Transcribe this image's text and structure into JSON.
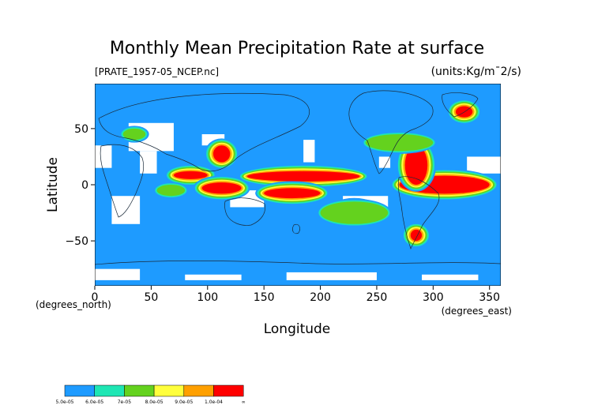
{
  "title": "Monthly Mean Precipitation Rate at surface",
  "source_file": "[PRATE_1957-05_NCEP.nc]",
  "units": "(units:Kg/m¯2/s)",
  "xlabel": "Longitude",
  "ylabel": "Latitude",
  "x_unit": "(degrees_east)",
  "y_unit": "(degrees_north)",
  "x_ticks": [
    "0",
    "50",
    "100",
    "150",
    "200",
    "250",
    "300",
    "350"
  ],
  "y_ticks": [
    "50",
    "0",
    "−50"
  ],
  "colorbar": {
    "labels": [
      "5.0e-05",
      "6.0e-05",
      "7e-05",
      "8.0e-05",
      "9.0e-05",
      "1.0e-04",
      "∞"
    ],
    "colors": [
      "#1e9bff",
      "#1ee6b4",
      "#64d21e",
      "#ffff3c",
      "#ffa000",
      "#ff0000"
    ]
  },
  "colors": {
    "ocean_background": "#1e9bff",
    "missing": "#ffffff",
    "coast": "#1a2a3a"
  },
  "chart_data": {
    "type": "heatmap",
    "title": "Monthly Mean Precipitation Rate at surface",
    "xlabel": "Longitude",
    "ylabel": "Latitude",
    "xlim": [
      0,
      360
    ],
    "ylim": [
      -90,
      90
    ],
    "bins": [
      5e-05,
      6e-05,
      7e-05,
      8e-05,
      9e-05,
      0.0001
    ],
    "regions": [
      {
        "lon": [
          135,
          235
        ],
        "lat": [
          3,
          12
        ],
        "level": 6
      },
      {
        "lon": [
          150,
          200
        ],
        "lat": [
          -12,
          -3
        ],
        "level": 6
      },
      {
        "lon": [
          270,
          350
        ],
        "lat": [
          -8,
          8
        ],
        "level": 6
      },
      {
        "lon": [
          275,
          295
        ],
        "lat": [
          0,
          35
        ],
        "level": 6
      },
      {
        "lon": [
          70,
          100
        ],
        "lat": [
          5,
          12
        ],
        "level": 6
      },
      {
        "lon": [
          95,
          130
        ],
        "lat": [
          -8,
          2
        ],
        "level": 6
      },
      {
        "lon": [
          105,
          120
        ],
        "lat": [
          20,
          35
        ],
        "level": 6
      },
      {
        "lon": [
          215,
          245
        ],
        "lat": [
          -28,
          -18
        ],
        "level": 6
      },
      {
        "lon": [
          320,
          335
        ],
        "lat": [
          60,
          70
        ],
        "level": 6
      },
      {
        "lon": [
          280,
          290
        ],
        "lat": [
          -50,
          -40
        ],
        "level": 6
      },
      {
        "lon": [
          55,
          80
        ],
        "lat": [
          -10,
          0
        ],
        "level": 3
      },
      {
        "lon": [
          240,
          300
        ],
        "lat": [
          30,
          45
        ],
        "level": 3
      },
      {
        "lon": [
          25,
          45
        ],
        "lat": [
          40,
          50
        ],
        "level": 3
      },
      {
        "lon": [
          200,
          260
        ],
        "lat": [
          -35,
          -15
        ],
        "level": 3
      }
    ]
  }
}
